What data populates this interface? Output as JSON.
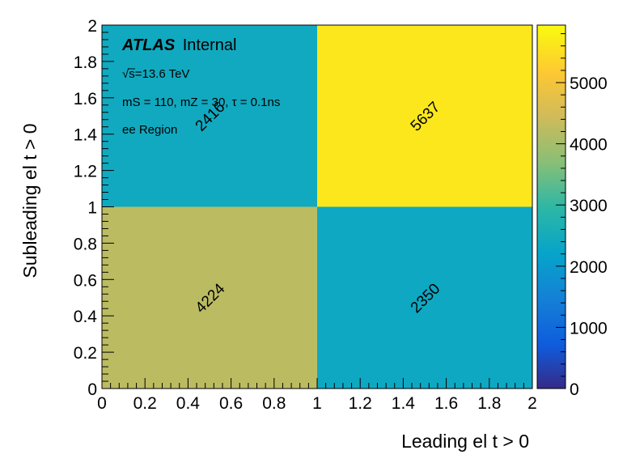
{
  "chart_data": {
    "type": "heatmap",
    "xlabel": "Leading el t > 0",
    "ylabel": "Subleading el t > 0",
    "x_edges": [
      0,
      1,
      2
    ],
    "y_edges": [
      0,
      1,
      2
    ],
    "xlim": [
      0,
      2
    ],
    "ylim": [
      0,
      2
    ],
    "x_ticks": [
      "0",
      "0.2",
      "0.4",
      "0.6",
      "0.8",
      "1",
      "1.2",
      "1.4",
      "1.6",
      "1.8",
      "2"
    ],
    "y_ticks": [
      "0",
      "0.2",
      "0.4",
      "0.6",
      "0.8",
      "1",
      "1.2",
      "1.4",
      "1.6",
      "1.8",
      "2"
    ],
    "cells": [
      {
        "x": 0.5,
        "y": 0.5,
        "value": 4224,
        "label": "4224"
      },
      {
        "x": 1.5,
        "y": 0.5,
        "value": 2350,
        "label": "2350"
      },
      {
        "x": 0.5,
        "y": 1.5,
        "value": 2416,
        "label": "2416"
      },
      {
        "x": 1.5,
        "y": 1.5,
        "value": 5637,
        "label": "5637"
      }
    ],
    "colorbar": {
      "range": [
        0,
        5940
      ],
      "ticks": [
        0,
        1000,
        2000,
        3000,
        4000,
        5000
      ],
      "tick_labels": [
        "0",
        "1000",
        "2000",
        "3000",
        "4000",
        "5000"
      ],
      "colormap": "viridis-like (dark blue to yellow)"
    },
    "grid": false
  },
  "annotations": {
    "atlas_label": "ATLAS",
    "atlas_status": "Internal",
    "energy_sqrt": "√s",
    "energy_value": "=13.6 TeV",
    "signal_info": "mS = 110, mZ = 30, τ = 0.1ns",
    "region": "ee Region"
  },
  "colors": {
    "cell_4224": "#b4bb66",
    "cell_2350": "#0ca6c7",
    "cell_2416": "#10a7c3",
    "cell_5637": "#f6ee1f"
  }
}
